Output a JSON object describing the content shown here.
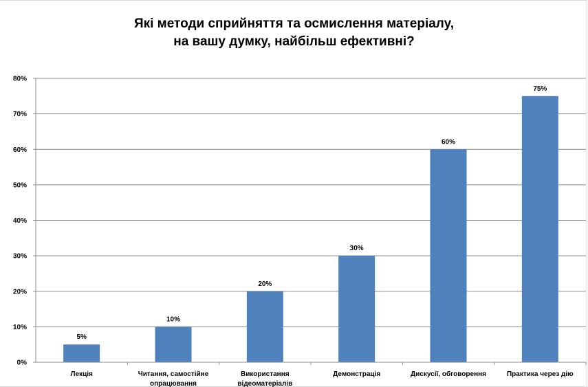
{
  "chart_data": {
    "type": "bar",
    "title": [
      "Які методи сприйняття та осмислення матеріалу,",
      "на вашу думку, найбільш ефективні?"
    ],
    "categories": [
      [
        "Лекція"
      ],
      [
        "Читання, самостійне",
        "опрацювання"
      ],
      [
        "Використання",
        "відеоматеріалів"
      ],
      [
        "Демонстрація"
      ],
      [
        "Дискусії, обговорення"
      ],
      [
        "Практика через дію"
      ]
    ],
    "values": [
      5,
      10,
      20,
      30,
      60,
      75
    ],
    "data_labels": [
      "5%",
      "10%",
      "20%",
      "30%",
      "60%",
      "75%"
    ],
    "ylim": [
      0,
      80
    ],
    "yticks": [
      "0%",
      "10%",
      "20%",
      "30%",
      "40%",
      "50%",
      "60%",
      "70%",
      "80%"
    ],
    "grid": true,
    "bar_color": "#4f81bd",
    "grid_color": "#8c8c8c"
  }
}
